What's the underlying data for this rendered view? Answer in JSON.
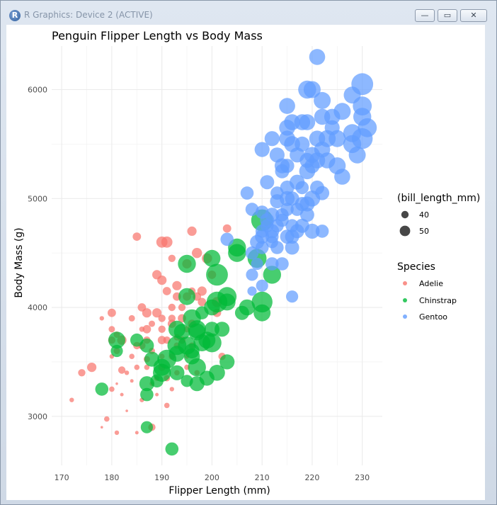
{
  "window": {
    "title": "R Graphics: Device 2 (ACTIVE)",
    "icon": "r-logo-icon",
    "buttons": {
      "minimize": "—",
      "maximize": "▭",
      "close": "✕"
    }
  },
  "chart_data": {
    "type": "scatter",
    "title": "Penguin Flipper Length vs Body Mass",
    "xlabel": "Flipper Length (mm)",
    "ylabel": "Body Mass (g)",
    "xlim": [
      168,
      234
    ],
    "ylim": [
      2550,
      6400
    ],
    "xticks": [
      170,
      180,
      190,
      200,
      210,
      220,
      230
    ],
    "yticks": [
      3000,
      4000,
      5000,
      6000
    ],
    "grid": true,
    "legend_placement": "right",
    "size_legend": {
      "title": "(bill_length_mm)",
      "values": [
        40,
        50
      ]
    },
    "color_legend": {
      "title": "Species"
    },
    "series": [
      {
        "name": "Adelie",
        "color": "#F8766D",
        "points": [
          [
            172,
            3150,
            37
          ],
          [
            174,
            3400,
            40
          ],
          [
            176,
            3450,
            42
          ],
          [
            178,
            3900,
            37
          ],
          [
            178,
            2900,
            34
          ],
          [
            179,
            2975,
            38
          ],
          [
            180,
            3950,
            41
          ],
          [
            180,
            3800,
            39
          ],
          [
            180,
            3550,
            37
          ],
          [
            180,
            3250,
            38
          ],
          [
            180,
            3700,
            40
          ],
          [
            181,
            3600,
            39
          ],
          [
            181,
            3750,
            39
          ],
          [
            181,
            3300,
            35
          ],
          [
            181,
            2850,
            37
          ],
          [
            182,
            3200,
            36
          ],
          [
            182,
            3425,
            40
          ],
          [
            182,
            3700,
            42
          ],
          [
            183,
            3050,
            35
          ],
          [
            183,
            3400,
            37
          ],
          [
            184,
            3550,
            38
          ],
          [
            184,
            3900,
            39
          ],
          [
            184,
            3325,
            36
          ],
          [
            185,
            3650,
            40
          ],
          [
            185,
            3450,
            38
          ],
          [
            185,
            4650,
            41
          ],
          [
            185,
            2850,
            36
          ],
          [
            186,
            3650,
            40
          ],
          [
            186,
            3800,
            38
          ],
          [
            186,
            4000,
            41
          ],
          [
            186,
            3150,
            37
          ],
          [
            187,
            3525,
            39
          ],
          [
            187,
            3450,
            38
          ],
          [
            187,
            3700,
            40
          ],
          [
            187,
            3800,
            41
          ],
          [
            187,
            3950,
            42
          ],
          [
            188,
            3300,
            37
          ],
          [
            188,
            3600,
            39
          ],
          [
            188,
            2900,
            40
          ],
          [
            189,
            3200,
            36
          ],
          [
            189,
            3350,
            38
          ],
          [
            189,
            3950,
            42
          ],
          [
            189,
            4300,
            42
          ],
          [
            190,
            3450,
            40
          ],
          [
            190,
            3700,
            41
          ],
          [
            190,
            3800,
            40
          ],
          [
            190,
            4250,
            42
          ],
          [
            190,
            3550,
            38
          ],
          [
            190,
            3900,
            40
          ],
          [
            190,
            4600,
            44
          ],
          [
            191,
            3700,
            40
          ],
          [
            191,
            4150,
            41
          ],
          [
            191,
            3350,
            39
          ],
          [
            191,
            4600,
            44
          ],
          [
            191,
            3100,
            38
          ],
          [
            192,
            4000,
            40
          ],
          [
            192,
            3850,
            41
          ],
          [
            192,
            3550,
            39
          ],
          [
            192,
            3900,
            40
          ],
          [
            192,
            3250,
            37
          ],
          [
            193,
            4200,
            42
          ],
          [
            193,
            4100,
            41
          ],
          [
            193,
            3725,
            39
          ],
          [
            193,
            3400,
            38
          ],
          [
            193,
            3650,
            39
          ],
          [
            194,
            4000,
            40
          ],
          [
            194,
            3700,
            40
          ],
          [
            194,
            3900,
            41
          ],
          [
            195,
            3800,
            39
          ],
          [
            195,
            4100,
            41
          ],
          [
            195,
            3450,
            38
          ],
          [
            195,
            4400,
            42
          ],
          [
            196,
            4150,
            40
          ],
          [
            196,
            3850,
            41
          ],
          [
            196,
            4700,
            42
          ],
          [
            196,
            3650,
            39
          ],
          [
            197,
            4500,
            43
          ],
          [
            197,
            4100,
            41
          ],
          [
            197,
            3400,
            38
          ],
          [
            198,
            4050,
            41
          ],
          [
            198,
            4150,
            42
          ],
          [
            199,
            4450,
            43
          ],
          [
            200,
            4300,
            41
          ],
          [
            201,
            3950,
            41
          ],
          [
            201,
            4050,
            43
          ],
          [
            202,
            3550,
            40
          ],
          [
            203,
            4725,
            41
          ],
          [
            195,
            3550,
            37
          ],
          [
            188,
            3850,
            39
          ],
          [
            192,
            4450,
            40
          ]
        ]
      },
      {
        "name": "Chinstrap",
        "color": "#00BA38",
        "points": [
          [
            178,
            3250,
            46
          ],
          [
            181,
            3600,
            45
          ],
          [
            181,
            3700,
            50
          ],
          [
            185,
            3700,
            46
          ],
          [
            187,
            3650,
            47
          ],
          [
            187,
            3300,
            48
          ],
          [
            187,
            3200,
            46
          ],
          [
            187,
            2900,
            45
          ],
          [
            188,
            3525,
            48
          ],
          [
            189,
            3325,
            46
          ],
          [
            190,
            3400,
            51
          ],
          [
            190,
            3450,
            50
          ],
          [
            191,
            3525,
            52
          ],
          [
            192,
            2700,
            46
          ],
          [
            193,
            3800,
            50
          ],
          [
            193,
            3650,
            52
          ],
          [
            193,
            3575,
            49
          ],
          [
            193,
            3400,
            48
          ],
          [
            194,
            3775,
            49
          ],
          [
            195,
            3325,
            45
          ],
          [
            195,
            4100,
            50
          ],
          [
            195,
            4400,
            51
          ],
          [
            195,
            3650,
            51
          ],
          [
            196,
            3600,
            48
          ],
          [
            196,
            3550,
            49
          ],
          [
            196,
            3900,
            51
          ],
          [
            197,
            3800,
            51
          ],
          [
            197,
            3450,
            51
          ],
          [
            197,
            3300,
            48
          ],
          [
            197,
            3775,
            50
          ],
          [
            198,
            3675,
            50
          ],
          [
            198,
            3950,
            46
          ],
          [
            199,
            3700,
            50
          ],
          [
            200,
            3675,
            52
          ],
          [
            200,
            3800,
            48
          ],
          [
            200,
            4000,
            49
          ],
          [
            200,
            4450,
            50
          ],
          [
            201,
            4050,
            54
          ],
          [
            201,
            4300,
            55
          ],
          [
            201,
            3400,
            49
          ],
          [
            202,
            3800,
            48
          ],
          [
            203,
            4050,
            50
          ],
          [
            203,
            4100,
            52
          ],
          [
            203,
            3500,
            48
          ],
          [
            205,
            4550,
            51
          ],
          [
            205,
            4500,
            51
          ],
          [
            207,
            4000,
            49
          ],
          [
            209,
            4450,
            52
          ],
          [
            210,
            4800,
            55
          ],
          [
            210,
            4050,
            54
          ],
          [
            210,
            3950,
            50
          ],
          [
            212,
            4300,
            51
          ],
          [
            206,
            3950,
            47
          ],
          [
            199,
            3350,
            48
          ]
        ]
      },
      {
        "name": "Gentoo",
        "color": "#619CFF",
        "points": [
          [
            203,
            4625,
            46
          ],
          [
            207,
            5050,
            46
          ],
          [
            208,
            4300,
            45
          ],
          [
            208,
            4500,
            46
          ],
          [
            208,
            4150,
            42
          ],
          [
            208,
            4900,
            46
          ],
          [
            209,
            4600,
            47
          ],
          [
            209,
            4400,
            45
          ],
          [
            210,
            4875,
            46
          ],
          [
            210,
            4550,
            46
          ],
          [
            210,
            4650,
            47
          ],
          [
            210,
            4200,
            45
          ],
          [
            210,
            4700,
            46
          ],
          [
            211,
            4750,
            46
          ],
          [
            211,
            4800,
            47
          ],
          [
            212,
            4650,
            46
          ],
          [
            212,
            4600,
            45
          ],
          [
            212,
            4400,
            46
          ],
          [
            212,
            4700,
            47
          ],
          [
            212,
            4850,
            47
          ],
          [
            213,
            4550,
            46
          ],
          [
            213,
            4750,
            46
          ],
          [
            213,
            4975,
            47
          ],
          [
            214,
            4850,
            46
          ],
          [
            214,
            4800,
            46
          ],
          [
            214,
            5300,
            48
          ],
          [
            215,
            4650,
            47
          ],
          [
            215,
            4900,
            46
          ],
          [
            215,
            5000,
            48
          ],
          [
            215,
            5550,
            49
          ],
          [
            215,
            5650,
            49
          ],
          [
            215,
            5100,
            47
          ],
          [
            216,
            4750,
            46
          ],
          [
            216,
            5000,
            47
          ],
          [
            216,
            5500,
            49
          ],
          [
            216,
            4100,
            45
          ],
          [
            217,
            4900,
            46
          ],
          [
            217,
            5150,
            48
          ],
          [
            217,
            4700,
            47
          ],
          [
            218,
            5100,
            46
          ],
          [
            218,
            5700,
            49
          ],
          [
            218,
            4950,
            47
          ],
          [
            219,
            5250,
            49
          ],
          [
            219,
            5700,
            49
          ],
          [
            219,
            5350,
            48
          ],
          [
            219,
            4850,
            47
          ],
          [
            220,
            5400,
            49
          ],
          [
            220,
            5300,
            48
          ],
          [
            220,
            6000,
            50
          ],
          [
            221,
            5100,
            47
          ],
          [
            221,
            5550,
            49
          ],
          [
            221,
            6300,
            49
          ],
          [
            222,
            5450,
            49
          ],
          [
            222,
            5900,
            50
          ],
          [
            223,
            5550,
            50
          ],
          [
            224,
            5650,
            48
          ],
          [
            225,
            5300,
            50
          ],
          [
            226,
            5200,
            49
          ],
          [
            228,
            5600,
            51
          ],
          [
            228,
            5950,
            50
          ],
          [
            230,
            5750,
            51
          ],
          [
            230,
            5550,
            54
          ],
          [
            230,
            5850,
            52
          ],
          [
            230,
            6050,
            55
          ],
          [
            231,
            5650,
            52
          ],
          [
            216,
            5700,
            49
          ],
          [
            214,
            5250,
            47
          ],
          [
            218,
            5500,
            48
          ],
          [
            222,
            5050,
            47
          ],
          [
            212,
            5550,
            48
          ],
          [
            210,
            5450,
            48
          ],
          [
            211,
            5150,
            47
          ],
          [
            213,
            5400,
            48
          ],
          [
            217,
            5400,
            48
          ],
          [
            222,
            5750,
            49
          ],
          [
            224,
            5750,
            49
          ],
          [
            219,
            6000,
            51
          ],
          [
            215,
            5850,
            49
          ],
          [
            221,
            5350,
            49
          ],
          [
            213,
            5050,
            46
          ],
          [
            215,
            5300,
            47
          ],
          [
            216,
            4650,
            47
          ],
          [
            220,
            4700,
            48
          ],
          [
            220,
            5000,
            49
          ],
          [
            222,
            4700,
            46
          ],
          [
            223,
            5350,
            49
          ],
          [
            225,
            5550,
            50
          ],
          [
            228,
            5500,
            51
          ],
          [
            229,
            5400,
            50
          ],
          [
            226,
            5800,
            50
          ],
          [
            214,
            4400,
            46
          ],
          [
            216,
            4550,
            47
          ],
          [
            218,
            4750,
            47
          ],
          [
            219,
            4950,
            48
          ]
        ]
      }
    ]
  }
}
